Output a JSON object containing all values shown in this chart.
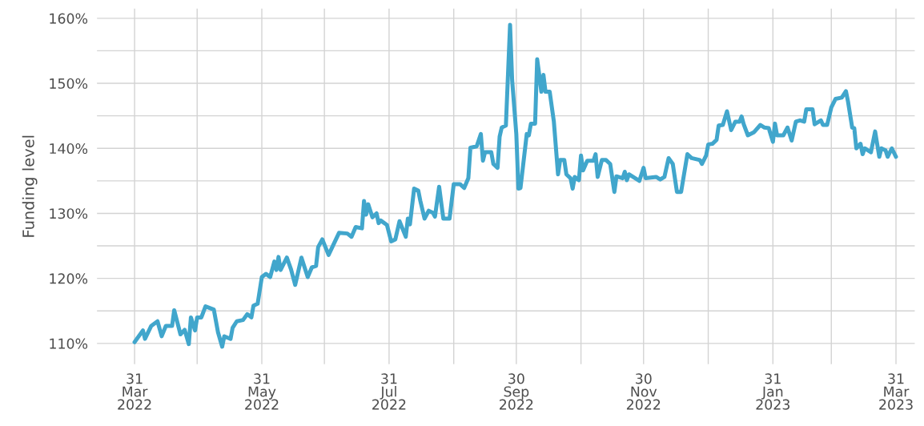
{
  "chart_data": {
    "type": "line",
    "ylabel": "Funding level",
    "x": [
      "2022-03-31",
      "2022-04-04",
      "2022-04-05",
      "2022-04-08",
      "2022-04-11",
      "2022-04-13",
      "2022-04-15",
      "2022-04-18",
      "2022-04-19",
      "2022-04-22",
      "2022-04-24",
      "2022-04-26",
      "2022-04-27",
      "2022-04-29",
      "2022-04-30",
      "2022-05-02",
      "2022-05-04",
      "2022-05-08",
      "2022-05-10",
      "2022-05-12",
      "2022-05-13",
      "2022-05-16",
      "2022-05-17",
      "2022-05-19",
      "2022-05-22",
      "2022-05-24",
      "2022-05-26",
      "2022-05-27",
      "2022-05-29",
      "2022-05-31",
      "2022-06-02",
      "2022-06-04",
      "2022-06-06",
      "2022-06-07",
      "2022-06-08",
      "2022-06-09",
      "2022-06-12",
      "2022-06-14",
      "2022-06-16",
      "2022-06-17",
      "2022-06-19",
      "2022-06-22",
      "2022-06-24",
      "2022-06-26",
      "2022-06-27",
      "2022-06-29",
      "2022-07-02",
      "2022-07-07",
      "2022-07-11",
      "2022-07-13",
      "2022-07-15",
      "2022-07-18",
      "2022-07-19",
      "2022-07-20",
      "2022-07-21",
      "2022-07-23",
      "2022-07-25",
      "2022-07-26",
      "2022-07-27",
      "2022-07-30",
      "2022-08-01",
      "2022-08-03",
      "2022-08-05",
      "2022-08-08",
      "2022-08-09",
      "2022-08-10",
      "2022-08-12",
      "2022-08-14",
      "2022-08-15",
      "2022-08-17",
      "2022-08-19",
      "2022-08-21",
      "2022-08-22",
      "2022-08-24",
      "2022-08-26",
      "2022-08-29",
      "2022-08-31",
      "2022-09-03",
      "2022-09-05",
      "2022-09-07",
      "2022-09-08",
      "2022-09-11",
      "2022-09-13",
      "2022-09-14",
      "2022-09-15",
      "2022-09-18",
      "2022-09-19",
      "2022-09-21",
      "2022-09-22",
      "2022-09-23",
      "2022-09-25",
      "2022-09-27",
      "2022-09-28",
      "2022-09-30",
      "2022-10-01",
      "2022-10-02",
      "2022-10-05",
      "2022-10-06",
      "2022-10-07",
      "2022-10-09",
      "2022-10-10",
      "2022-10-11",
      "2022-10-12",
      "2022-10-13",
      "2022-10-14",
      "2022-10-16",
      "2022-10-18",
      "2022-10-20",
      "2022-10-21",
      "2022-10-23",
      "2022-10-24",
      "2022-10-26",
      "2022-10-27",
      "2022-10-28",
      "2022-10-30",
      "2022-10-31",
      "2022-11-01",
      "2022-11-03",
      "2022-11-06",
      "2022-11-07",
      "2022-11-08",
      "2022-11-10",
      "2022-11-12",
      "2022-11-14",
      "2022-11-16",
      "2022-11-17",
      "2022-11-20",
      "2022-11-21",
      "2022-11-22",
      "2022-11-23",
      "2022-11-28",
      "2022-11-30",
      "2022-12-01",
      "2022-12-06",
      "2022-12-08",
      "2022-12-10",
      "2022-12-12",
      "2022-12-14",
      "2022-12-16",
      "2022-12-18",
      "2022-12-21",
      "2022-12-23",
      "2022-12-27",
      "2022-12-28",
      "2022-12-30",
      "2022-12-31",
      "2023-01-02",
      "2023-01-04",
      "2023-01-05",
      "2023-01-07",
      "2023-01-09",
      "2023-01-11",
      "2023-01-13",
      "2023-01-15",
      "2023-01-16",
      "2023-01-17",
      "2023-01-19",
      "2023-01-22",
      "2023-01-25",
      "2023-01-27",
      "2023-01-29",
      "2023-01-31",
      "2023-02-01",
      "2023-02-02",
      "2023-02-05",
      "2023-02-07",
      "2023-02-09",
      "2023-02-11",
      "2023-02-13",
      "2023-02-15",
      "2023-02-16",
      "2023-02-19",
      "2023-02-20",
      "2023-02-23",
      "2023-02-24",
      "2023-02-26",
      "2023-02-28",
      "2023-03-02",
      "2023-03-05",
      "2023-03-07",
      "2023-03-08",
      "2023-03-10",
      "2023-03-11",
      "2023-03-12",
      "2023-03-14",
      "2023-03-15",
      "2023-03-16",
      "2023-03-19",
      "2023-03-21",
      "2023-03-23",
      "2023-03-24",
      "2023-03-26",
      "2023-03-27",
      "2023-03-29",
      "2023-03-31"
    ],
    "series": [
      {
        "color": "#41a6cc",
        "values": [
          110.2,
          112.0,
          110.7,
          112.7,
          113.4,
          111.1,
          112.7,
          112.7,
          115.1,
          111.4,
          112.1,
          109.9,
          114.0,
          112.0,
          114.0,
          114.0,
          115.7,
          115.2,
          111.7,
          109.5,
          111.1,
          110.7,
          112.4,
          113.4,
          113.6,
          114.5,
          114.0,
          115.8,
          116.1,
          120.2,
          120.7,
          120.2,
          122.6,
          121.3,
          123.3,
          121.3,
          123.2,
          121.4,
          119.0,
          120.4,
          123.2,
          120.2,
          121.7,
          121.9,
          124.8,
          126.0,
          123.6,
          127.0,
          126.9,
          126.4,
          127.9,
          127.7,
          131.9,
          129.8,
          131.4,
          129.4,
          130.0,
          128.5,
          128.9,
          128.2,
          125.7,
          126.0,
          128.8,
          126.4,
          129.2,
          128.3,
          133.8,
          133.5,
          131.9,
          129.2,
          130.4,
          130.1,
          129.5,
          134.1,
          129.2,
          129.2,
          134.5,
          134.5,
          133.9,
          135.4,
          140.1,
          140.3,
          142.2,
          138.1,
          139.4,
          139.4,
          137.6,
          137.0,
          141.8,
          143.2,
          143.5,
          159.0,
          150.5,
          142.2,
          133.8,
          133.9,
          142.2,
          142.0,
          143.8,
          143.8,
          153.7,
          151.3,
          148.7,
          151.3,
          148.7,
          148.7,
          144.1,
          136.0,
          138.2,
          138.2,
          136.0,
          135.4,
          133.8,
          135.6,
          135.1,
          138.9,
          136.6,
          138.1,
          138.1,
          139.1,
          135.6,
          138.2,
          138.2,
          137.6,
          133.3,
          135.7,
          135.4,
          136.4,
          135.1,
          136.0,
          135.0,
          137.0,
          135.4,
          135.6,
          135.2,
          135.6,
          138.5,
          137.6,
          133.3,
          133.3,
          139.1,
          138.5,
          138.2,
          137.6,
          138.9,
          140.6,
          140.7,
          141.3,
          143.5,
          143.6,
          145.7,
          142.8,
          144.1,
          144.1,
          144.9,
          143.7,
          142.0,
          142.5,
          143.6,
          143.2,
          143.1,
          141.0,
          143.8,
          142.0,
          142.0,
          143.2,
          141.2,
          144.1,
          144.3,
          144.1,
          146.0,
          146.0,
          143.7,
          144.3,
          143.6,
          143.6,
          146.3,
          147.6,
          147.8,
          148.8,
          147.2,
          143.2,
          143.1,
          140.0,
          140.7,
          139.1,
          140.0,
          139.4,
          142.6,
          138.7,
          140.0,
          139.7,
          138.7,
          140.0,
          138.7
        ]
      }
    ],
    "xlim": [
      "2022-03-13",
      "2023-04-09"
    ],
    "xticks": [
      {
        "value": "2022-03-31",
        "label": "31\nMar\n2022"
      },
      {
        "value": "2022-04-30",
        "label": null
      },
      {
        "value": "2022-05-31",
        "label": "31\nMay\n2022"
      },
      {
        "value": "2022-06-30",
        "label": null
      },
      {
        "value": "2022-07-31",
        "label": "31\nJul\n2022"
      },
      {
        "value": "2022-08-31",
        "label": null
      },
      {
        "value": "2022-09-30",
        "label": "30\nSep\n2022"
      },
      {
        "value": "2022-10-31",
        "label": null
      },
      {
        "value": "2022-11-30",
        "label": "30\nNov\n2022"
      },
      {
        "value": "2022-12-31",
        "label": null
      },
      {
        "value": "2023-01-31",
        "label": "31\nJan\n2023"
      },
      {
        "value": "2023-02-28",
        "label": null
      },
      {
        "value": "2023-03-31",
        "label": "31\nMar\n2023"
      }
    ],
    "ylim": [
      106.8,
      161.5
    ],
    "yticks": [
      {
        "value": 110,
        "label": "110%"
      },
      {
        "value": 115,
        "label": null
      },
      {
        "value": 120,
        "label": "120%"
      },
      {
        "value": 125,
        "label": null
      },
      {
        "value": 130,
        "label": "130%"
      },
      {
        "value": 135,
        "label": null
      },
      {
        "value": 140,
        "label": "140%"
      },
      {
        "value": 145,
        "label": null
      },
      {
        "value": 150,
        "label": "150%"
      },
      {
        "value": 155,
        "label": null
      },
      {
        "value": 160,
        "label": "160%"
      }
    ],
    "grid": true,
    "line_style": "solid"
  }
}
